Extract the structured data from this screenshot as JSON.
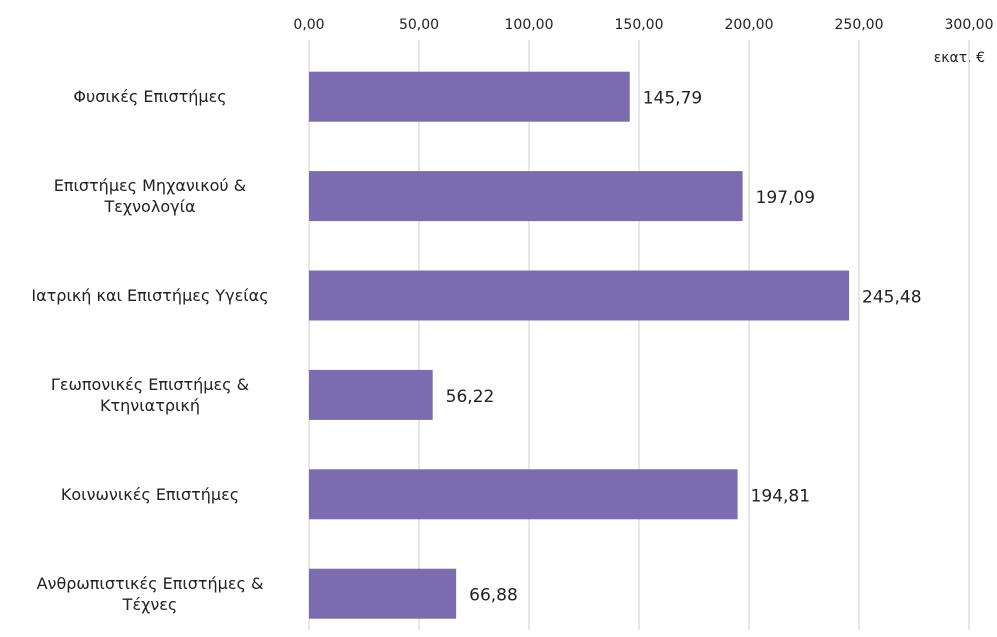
{
  "chart_data": {
    "type": "barh",
    "categories": [
      "Φυσικές Επιστήμες",
      "Επιστήμες Μηχανικού & Τεχνολογία",
      "Ιατρική και Επιστήμες Υγείας",
      "Γεωπονικές Επιστήμες & Κτηνιατρική",
      "Κοινωνικές Επιστήμες",
      "Ανθρωπιστικές Επιστήμες & Τέχνες"
    ],
    "values": [
      145.79,
      197.09,
      245.48,
      56.22,
      194.81,
      66.88
    ],
    "value_labels": [
      "145,79",
      "197,09",
      "245,48",
      "56,22",
      "194,81",
      "66,88"
    ],
    "color": "#7b6bb0",
    "xlabel": "εκατ. €",
    "xlim": [
      0,
      300
    ],
    "xticks": [
      {
        "value": 0,
        "label": "0,00"
      },
      {
        "value": 50,
        "label": "50,00"
      },
      {
        "value": 100,
        "label": "100,00"
      },
      {
        "value": 150,
        "label": "150,00"
      },
      {
        "value": 200,
        "label": "200,00"
      },
      {
        "value": 250,
        "label": "250,00"
      },
      {
        "value": 300,
        "label": "300,00"
      }
    ],
    "grid": true
  }
}
